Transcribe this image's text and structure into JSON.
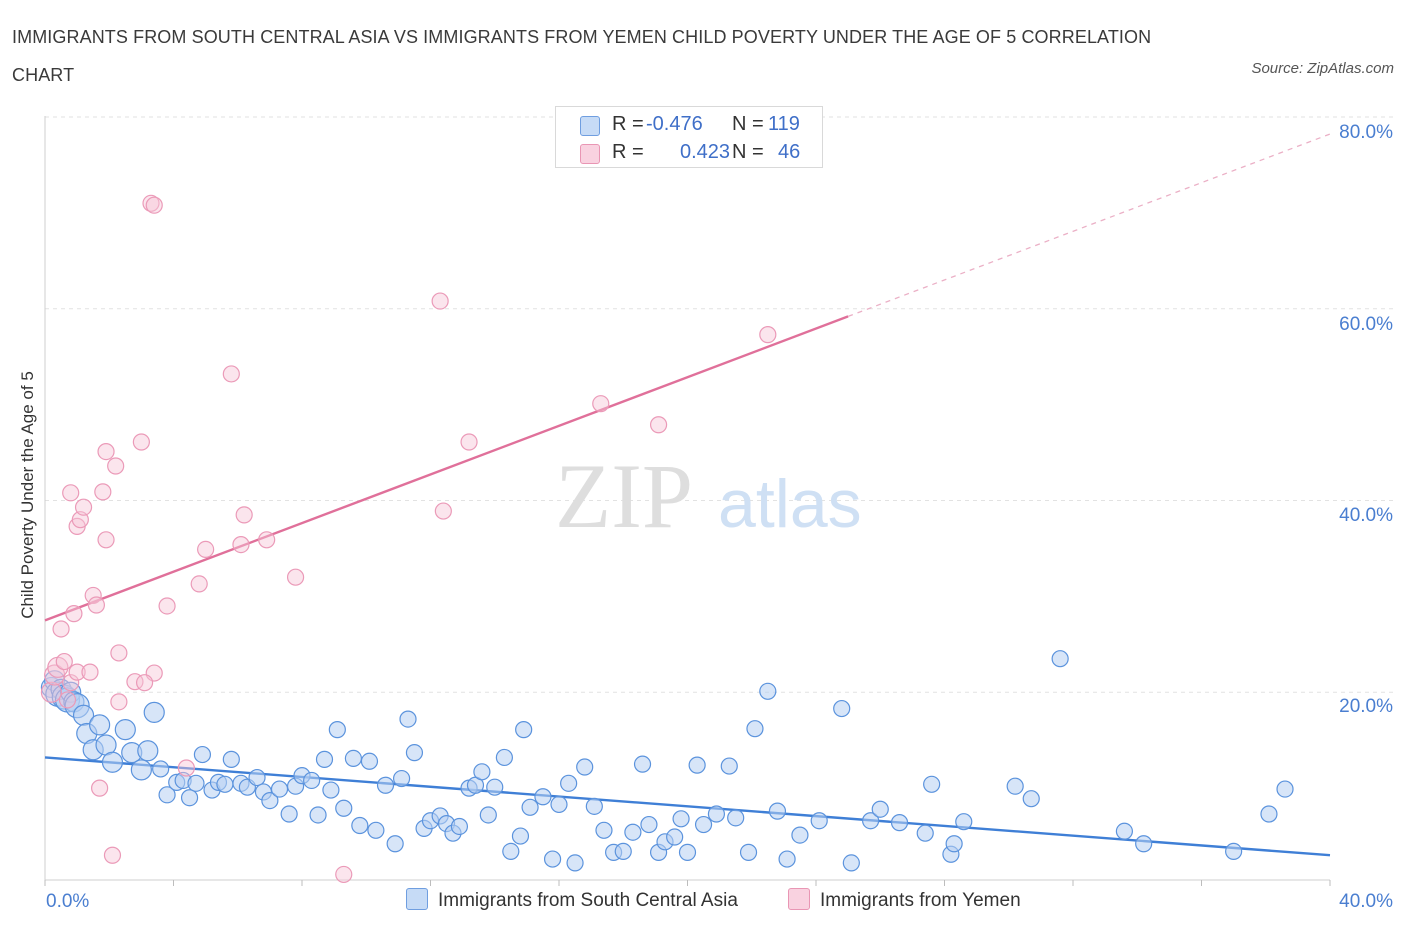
{
  "title": "IMMIGRANTS FROM SOUTH CENTRAL ASIA VS IMMIGRANTS FROM YEMEN CHILD POVERTY UNDER THE AGE OF 5 CORRELATION CHART",
  "source": "Source: ZipAtlas.com",
  "watermark": {
    "zip": "ZIP",
    "atlas": "atlas"
  },
  "legend": {
    "rows": [
      {
        "r_label": "R =",
        "r_value": "-0.476",
        "n_label": "N =",
        "n_value": "119"
      },
      {
        "r_label": "R =",
        "r_value": "0.423",
        "n_label": "N =",
        "n_value": "46"
      }
    ]
  },
  "colors": {
    "blue": "#4a86d8",
    "blue_fill": "#b7d0f3",
    "pink": "#e57fa4",
    "pink_fill": "#f6c6d6",
    "tick_text": "#4a7ed0"
  },
  "chart_data": {
    "type": "scatter",
    "title": "IMMIGRANTS FROM SOUTH CENTRAL ASIA VS IMMIGRANTS FROM YEMEN CHILD POVERTY UNDER THE AGE OF 5 CORRELATION CHART",
    "xlabel": "",
    "ylabel": "Child Poverty Under the Age of 5",
    "xlim": [
      0,
      40
    ],
    "ylim": [
      0,
      80
    ],
    "x_tick_labels": [
      "0.0%",
      "40.0%"
    ],
    "y_tick_labels": [
      "20.0%",
      "40.0%",
      "60.0%",
      "80.0%"
    ],
    "y_ticks": [
      20,
      40,
      60,
      80
    ],
    "grid": true,
    "legend_position": "top-center",
    "series": [
      {
        "name": "Immigrants from South Central Asia",
        "color": "#4a86d8",
        "R": -0.476,
        "N": 119,
        "trend": {
          "x": [
            0,
            40
          ],
          "y": [
            13.2,
            3.0
          ],
          "dashed_x": null
        },
        "points": [
          [
            0.2,
            20.5,
            1
          ],
          [
            0.3,
            21.2,
            1
          ],
          [
            0.4,
            19.8,
            2
          ],
          [
            0.5,
            20.3,
            1
          ],
          [
            0.6,
            19.5,
            2
          ],
          [
            0.7,
            19.2,
            2
          ],
          [
            0.8,
            20.0,
            1
          ],
          [
            0.9,
            19.0,
            1
          ],
          [
            1.0,
            18.6,
            2
          ],
          [
            1.2,
            17.6,
            1
          ],
          [
            1.3,
            15.7,
            1
          ],
          [
            1.5,
            14.0,
            1
          ],
          [
            1.7,
            16.6,
            1
          ],
          [
            1.9,
            14.5,
            1
          ],
          [
            2.1,
            12.7,
            1
          ],
          [
            2.5,
            16.1,
            1
          ],
          [
            2.7,
            13.7,
            1
          ],
          [
            3.0,
            11.9,
            1
          ],
          [
            3.2,
            13.9,
            1
          ],
          [
            3.4,
            17.9,
            1
          ],
          [
            3.6,
            12.0,
            0
          ],
          [
            3.8,
            9.3,
            0
          ],
          [
            4.1,
            10.6,
            0
          ],
          [
            4.3,
            10.8,
            0
          ],
          [
            4.5,
            9.0,
            0
          ],
          [
            4.7,
            10.5,
            0
          ],
          [
            4.9,
            13.5,
            0
          ],
          [
            5.2,
            9.8,
            0
          ],
          [
            5.4,
            10.6,
            0
          ],
          [
            5.6,
            10.4,
            0
          ],
          [
            5.8,
            13.0,
            0
          ],
          [
            6.1,
            10.5,
            0
          ],
          [
            6.3,
            10.1,
            0
          ],
          [
            6.6,
            11.1,
            0
          ],
          [
            6.8,
            9.6,
            0
          ],
          [
            7.0,
            8.7,
            0
          ],
          [
            7.3,
            9.9,
            0
          ],
          [
            7.6,
            7.3,
            0
          ],
          [
            7.8,
            10.2,
            0
          ],
          [
            8.0,
            11.3,
            0
          ],
          [
            8.3,
            10.8,
            0
          ],
          [
            8.5,
            7.2,
            0
          ],
          [
            8.7,
            13.0,
            0
          ],
          [
            8.9,
            9.8,
            0
          ],
          [
            9.1,
            16.1,
            0
          ],
          [
            9.3,
            7.9,
            0
          ],
          [
            9.6,
            13.1,
            0
          ],
          [
            9.8,
            6.1,
            0
          ],
          [
            10.1,
            12.8,
            0
          ],
          [
            10.3,
            5.6,
            0
          ],
          [
            10.6,
            10.3,
            0
          ],
          [
            10.9,
            4.2,
            0
          ],
          [
            11.1,
            11.0,
            0
          ],
          [
            11.3,
            17.2,
            0
          ],
          [
            11.5,
            13.7,
            0
          ],
          [
            11.8,
            5.8,
            0
          ],
          [
            12.0,
            6.6,
            0
          ],
          [
            12.3,
            7.1,
            0
          ],
          [
            12.5,
            6.3,
            0
          ],
          [
            12.7,
            5.3,
            0
          ],
          [
            12.9,
            6.0,
            0
          ],
          [
            13.2,
            10.0,
            0
          ],
          [
            13.4,
            10.3,
            0
          ],
          [
            13.6,
            11.7,
            0
          ],
          [
            13.8,
            7.2,
            0
          ],
          [
            14.0,
            10.1,
            0
          ],
          [
            14.3,
            13.2,
            0
          ],
          [
            14.5,
            3.4,
            0
          ],
          [
            14.8,
            5.0,
            0
          ],
          [
            14.9,
            16.1,
            0
          ],
          [
            15.1,
            8.0,
            0
          ],
          [
            15.5,
            9.1,
            0
          ],
          [
            15.8,
            2.6,
            0
          ],
          [
            16.0,
            8.3,
            0
          ],
          [
            16.3,
            10.5,
            0
          ],
          [
            16.5,
            2.2,
            0
          ],
          [
            16.8,
            12.2,
            0
          ],
          [
            17.1,
            8.1,
            0
          ],
          [
            17.4,
            5.6,
            0
          ],
          [
            17.7,
            3.3,
            0
          ],
          [
            18.0,
            3.4,
            0
          ],
          [
            18.3,
            5.4,
            0
          ],
          [
            18.6,
            12.5,
            0
          ],
          [
            18.8,
            6.2,
            0
          ],
          [
            19.1,
            3.3,
            0
          ],
          [
            19.3,
            4.4,
            0
          ],
          [
            19.6,
            4.9,
            0
          ],
          [
            19.8,
            6.8,
            0
          ],
          [
            20.0,
            3.3,
            0
          ],
          [
            20.3,
            12.4,
            0
          ],
          [
            20.5,
            6.2,
            0
          ],
          [
            20.9,
            7.3,
            0
          ],
          [
            21.3,
            12.3,
            0
          ],
          [
            21.5,
            6.9,
            0
          ],
          [
            21.9,
            3.3,
            0
          ],
          [
            22.1,
            16.2,
            0
          ],
          [
            22.5,
            20.1,
            0
          ],
          [
            22.8,
            7.6,
            0
          ],
          [
            23.1,
            2.6,
            0
          ],
          [
            23.5,
            5.1,
            0
          ],
          [
            24.1,
            6.6,
            0
          ],
          [
            24.8,
            18.3,
            0
          ],
          [
            25.1,
            2.2,
            0
          ],
          [
            25.7,
            6.6,
            0
          ],
          [
            26.0,
            7.8,
            0
          ],
          [
            26.6,
            6.4,
            0
          ],
          [
            27.6,
            10.4,
            0
          ],
          [
            27.4,
            5.3,
            0
          ],
          [
            28.2,
            3.1,
            0
          ],
          [
            28.3,
            4.2,
            0
          ],
          [
            28.6,
            6.5,
            0
          ],
          [
            30.2,
            10.2,
            0
          ],
          [
            30.7,
            8.9,
            0
          ],
          [
            31.6,
            23.5,
            0
          ],
          [
            33.6,
            5.5,
            0
          ],
          [
            34.2,
            4.2,
            0
          ],
          [
            37.0,
            3.4,
            0
          ],
          [
            38.1,
            7.3,
            0
          ],
          [
            38.6,
            9.9,
            0
          ]
        ]
      },
      {
        "name": "Immigrants from Yemen",
        "color": "#e57fa4",
        "R": 0.423,
        "N": 46,
        "trend": {
          "x": [
            0,
            25
          ],
          "y": [
            27.5,
            59.2
          ],
          "dashed_x": [
            25,
            40
          ]
        },
        "points": [
          [
            0.2,
            20.0,
            1
          ],
          [
            0.3,
            21.8,
            1
          ],
          [
            0.4,
            22.6,
            1
          ],
          [
            0.5,
            26.6,
            0
          ],
          [
            0.6,
            23.2,
            0
          ],
          [
            0.7,
            19.2,
            0
          ],
          [
            0.8,
            21.0,
            0
          ],
          [
            0.8,
            40.8,
            0
          ],
          [
            0.9,
            28.2,
            0
          ],
          [
            1.0,
            22.1,
            0
          ],
          [
            1.0,
            37.3,
            0
          ],
          [
            1.1,
            38.0,
            0
          ],
          [
            1.2,
            39.3,
            0
          ],
          [
            1.4,
            22.1,
            0
          ],
          [
            1.5,
            30.1,
            0
          ],
          [
            1.6,
            29.1,
            0
          ],
          [
            1.7,
            10.0,
            0
          ],
          [
            1.8,
            40.9,
            0
          ],
          [
            1.9,
            35.9,
            0
          ],
          [
            1.9,
            45.1,
            0
          ],
          [
            2.1,
            3.0,
            0
          ],
          [
            2.2,
            43.6,
            0
          ],
          [
            2.3,
            19.0,
            0
          ],
          [
            2.3,
            24.1,
            0
          ],
          [
            2.8,
            21.1,
            0
          ],
          [
            3.0,
            46.1,
            0
          ],
          [
            3.3,
            71.0,
            0
          ],
          [
            3.4,
            70.8,
            0
          ],
          [
            3.4,
            22.0,
            0
          ],
          [
            3.8,
            29.0,
            0
          ],
          [
            4.4,
            12.1,
            0
          ],
          [
            4.8,
            31.3,
            0
          ],
          [
            5.0,
            34.9,
            0
          ],
          [
            5.8,
            53.2,
            0
          ],
          [
            6.1,
            35.4,
            0
          ],
          [
            6.2,
            38.5,
            0
          ],
          [
            6.9,
            35.9,
            0
          ],
          [
            7.8,
            32.0,
            0
          ],
          [
            9.3,
            1.0,
            0
          ],
          [
            12.3,
            60.8,
            0
          ],
          [
            12.4,
            38.9,
            0
          ],
          [
            13.2,
            46.1,
            0
          ],
          [
            17.3,
            50.1,
            0
          ],
          [
            19.1,
            47.9,
            0
          ],
          [
            22.5,
            57.3,
            0
          ],
          [
            3.1,
            21.0,
            0
          ]
        ]
      }
    ]
  }
}
